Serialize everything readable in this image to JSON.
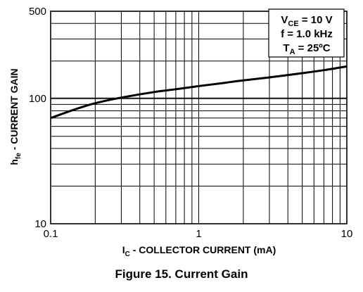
{
  "figure_caption": "Figure 15. Current Gain",
  "chart_data": {
    "type": "line",
    "x_scale": "log",
    "y_scale": "log",
    "xlim": [
      0.1,
      10
    ],
    "ylim": [
      10,
      500
    ],
    "grid": true,
    "x_ticks": [
      {
        "value": 0.1,
        "label": "0.1"
      },
      {
        "value": 1,
        "label": "1"
      },
      {
        "value": 10,
        "label": "10"
      }
    ],
    "y_ticks": [
      {
        "value": 10,
        "label": "10"
      },
      {
        "value": 100,
        "label": "100"
      },
      {
        "value": 500,
        "label": "500"
      }
    ],
    "xlabel": {
      "main": "I",
      "sub": "C",
      "rest": " - COLLECTOR CURRENT (mA)"
    },
    "ylabel": {
      "main": "h",
      "sub": "fe",
      "rest": " - CURRENT GAIN"
    },
    "conditions": [
      {
        "main": "V",
        "sub": "CE",
        "rest": " = 10 V"
      },
      {
        "main": "f = 1.0 kHz",
        "sub": "",
        "rest": ""
      },
      {
        "main": "T",
        "sub": "A",
        "rest": " = 25ºC"
      }
    ],
    "series": [
      {
        "x": [
          0.1,
          0.15,
          0.2,
          0.3,
          0.5,
          0.7,
          1,
          1.5,
          2,
          3,
          5,
          7,
          10
        ],
        "y": [
          70,
          83,
          92,
          102,
          113,
          119,
          126,
          134,
          140,
          148,
          160,
          169,
          181
        ]
      }
    ]
  }
}
